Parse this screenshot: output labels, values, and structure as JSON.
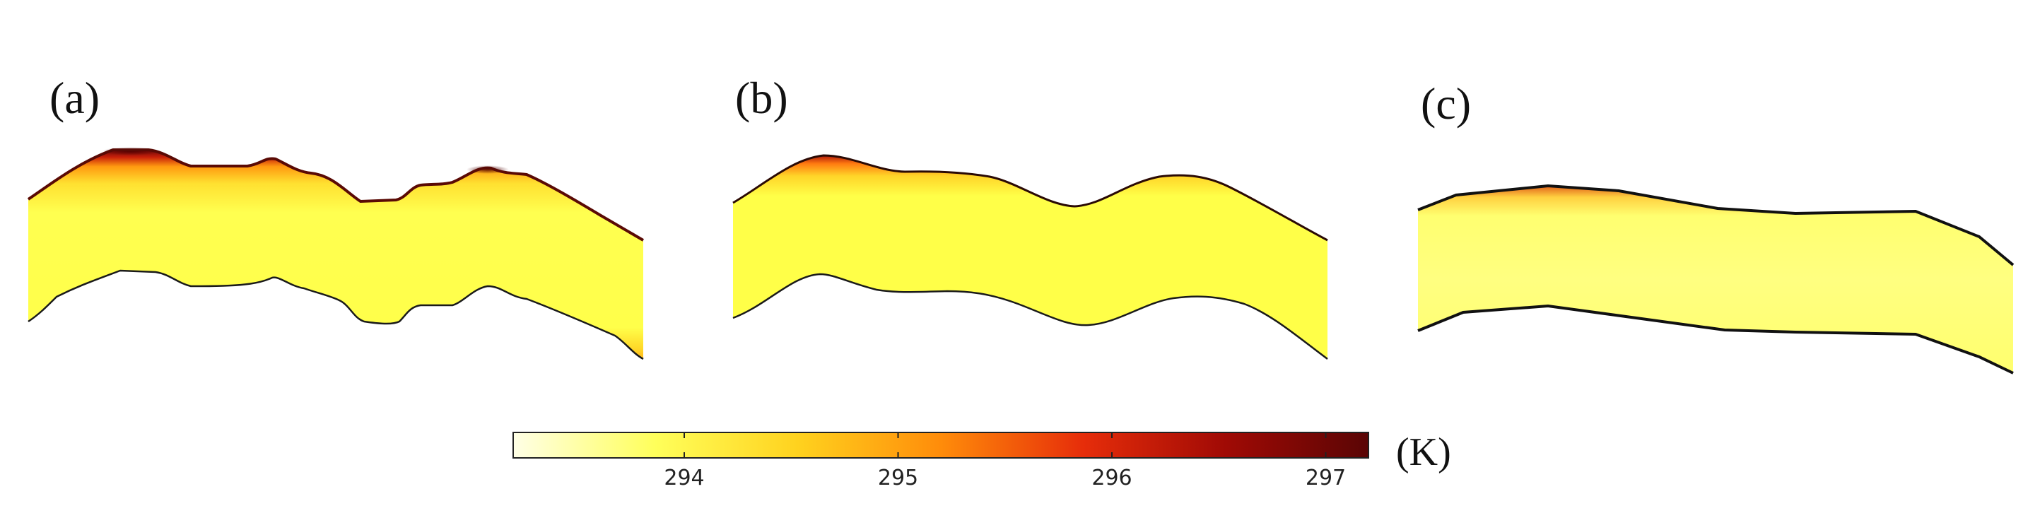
{
  "panels": [
    {
      "label": "(a)"
    },
    {
      "label": "(b)"
    },
    {
      "label": "(c)"
    }
  ],
  "colorbar": {
    "ticks": [
      "294",
      "295",
      "296",
      "297"
    ],
    "unit": "(K)",
    "min_value": 293.2,
    "max_value": 297.2,
    "tick_values": [
      294,
      295,
      296,
      297
    ],
    "colormap": [
      "#ffffe6",
      "#ffff5a",
      "#ffd21e",
      "#ff8c0a",
      "#e62d0a",
      "#a00a05",
      "#5a0505"
    ]
  }
}
